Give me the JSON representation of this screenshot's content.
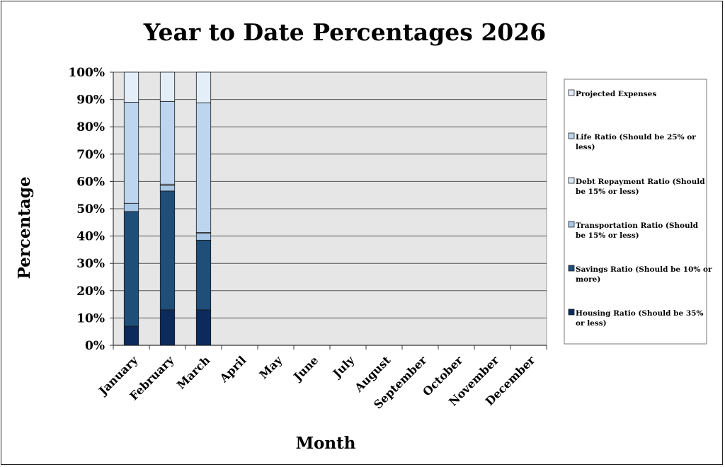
{
  "chart_data": {
    "type": "bar",
    "stacked": true,
    "title": "Year to Date Percentages 2026",
    "xlabel": "Month",
    "ylabel": "Percentage",
    "ylim": [
      0,
      100
    ],
    "yticks": [
      "0%",
      "10%",
      "20%",
      "30%",
      "40%",
      "50%",
      "60%",
      "70%",
      "80%",
      "90%",
      "100%"
    ],
    "categories": [
      "January",
      "February",
      "March",
      "April",
      "May",
      "June",
      "July",
      "August",
      "September",
      "October",
      "November",
      "December"
    ],
    "grid": true,
    "legend_position": "right",
    "series": [
      {
        "name": "Housing Ratio (Should be 35% or less)",
        "color": "#0d2a5c",
        "values": [
          7,
          13,
          13,
          null,
          null,
          null,
          null,
          null,
          null,
          null,
          null,
          null
        ]
      },
      {
        "name": "Savings Ratio (Should be 10% or more)",
        "color": "#1f4e79",
        "values": [
          42,
          43.5,
          25.5,
          null,
          null,
          null,
          null,
          null,
          null,
          null,
          null,
          null
        ]
      },
      {
        "name": "Transportation Ratio (Should be 15% or less)",
        "color": "#a9c8e8",
        "values": [
          3,
          2,
          2.5,
          null,
          null,
          null,
          null,
          null,
          null,
          null,
          null,
          null
        ]
      },
      {
        "name": "Debt Repayment Ratio (Should be 15% or less)",
        "color": "#dde9f6",
        "values": [
          0,
          0.5,
          0.3,
          null,
          null,
          null,
          null,
          null,
          null,
          null,
          null,
          null
        ]
      },
      {
        "name": "Life Ratio (Should be 25% or less)",
        "color": "#bdd5ee",
        "values": [
          37,
          30.3,
          47.5,
          null,
          null,
          null,
          null,
          null,
          null,
          null,
          null,
          null
        ]
      },
      {
        "name": "Projected Expenses",
        "color": "#e3eef9",
        "values": [
          11,
          10.7,
          11.2,
          null,
          null,
          null,
          null,
          null,
          null,
          null,
          null,
          null
        ]
      }
    ],
    "legend_order": [
      5,
      4,
      3,
      2,
      1,
      0
    ],
    "legend_lines": [
      [
        "Projected Expenses"
      ],
      [
        "Life Ratio (Should be 25% or",
        "less)"
      ],
      [
        "Debt Repayment Ratio (Should",
        "be 15% or less)"
      ],
      [
        "Transportation Ratio (Should",
        "be 15% or less)"
      ],
      [
        "Savings Ratio (Should be 10% or",
        "more)"
      ],
      [
        "Housing Ratio (Should be 35%",
        "or less)"
      ]
    ],
    "plot_background": "#e6e6e6"
  }
}
